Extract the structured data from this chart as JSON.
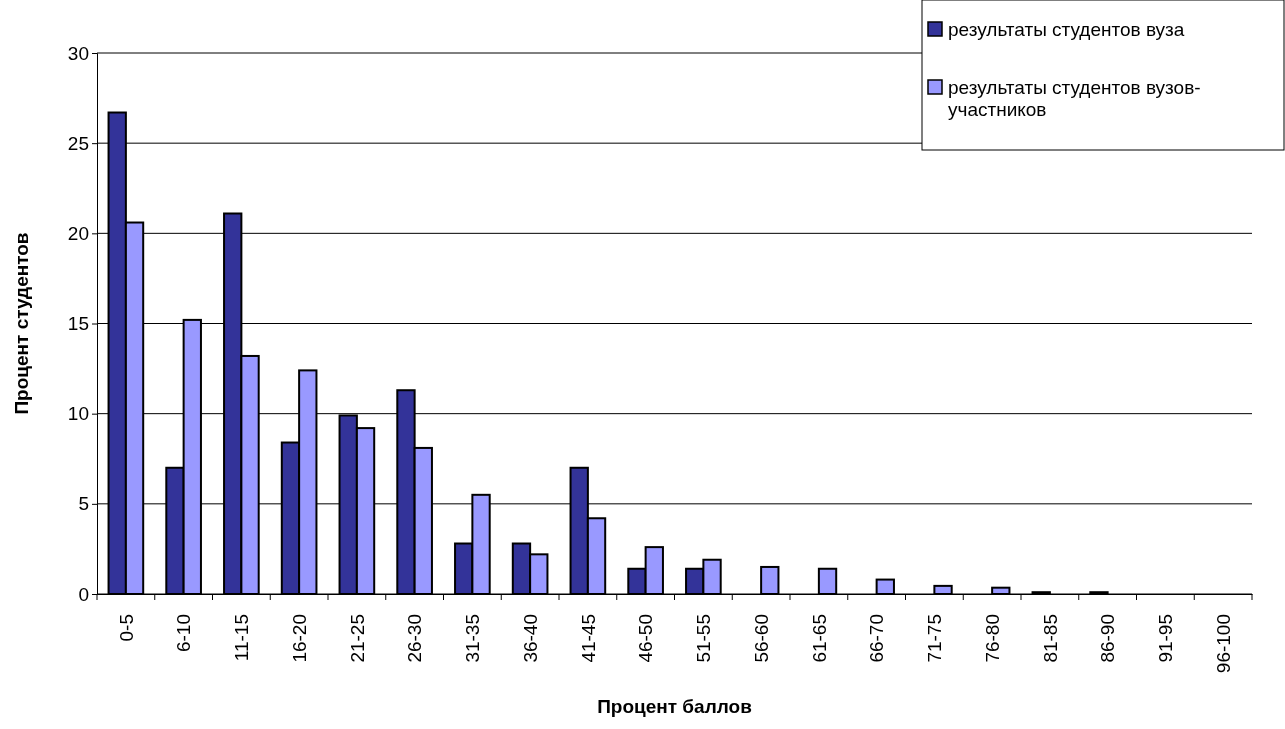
{
  "chart_data": {
    "type": "bar",
    "xlabel": "Процент баллов",
    "ylabel": "Процент студентов",
    "categories": [
      "0-5",
      "6-10",
      "11-15",
      "16-20",
      "21-25",
      "26-30",
      "31-35",
      "36-40",
      "41-45",
      "46-50",
      "51-55",
      "56-60",
      "61-65",
      "66-70",
      "71-75",
      "76-80",
      "81-85",
      "86-90",
      "91-95",
      "96-100"
    ],
    "series": [
      {
        "name": "результаты студентов вуза",
        "color": "#333399",
        "values": [
          26.7,
          7.0,
          21.1,
          8.4,
          9.9,
          11.3,
          2.8,
          2.8,
          7.0,
          1.4,
          1.4,
          0,
          0,
          0,
          0,
          0,
          0.1,
          0.1,
          0,
          0
        ]
      },
      {
        "name": "результаты студентов вузов-участников",
        "color": "#9999ff",
        "values": [
          20.6,
          15.2,
          13.2,
          12.4,
          9.2,
          8.1,
          5.5,
          2.2,
          4.2,
          2.6,
          1.9,
          1.5,
          1.4,
          0.8,
          0.45,
          0.35,
          0,
          0,
          0,
          0
        ]
      }
    ],
    "ylim": [
      0,
      30
    ],
    "yticks": [
      0,
      5,
      10,
      15,
      20,
      25,
      30
    ],
    "grid": "y",
    "legend": "top right"
  }
}
